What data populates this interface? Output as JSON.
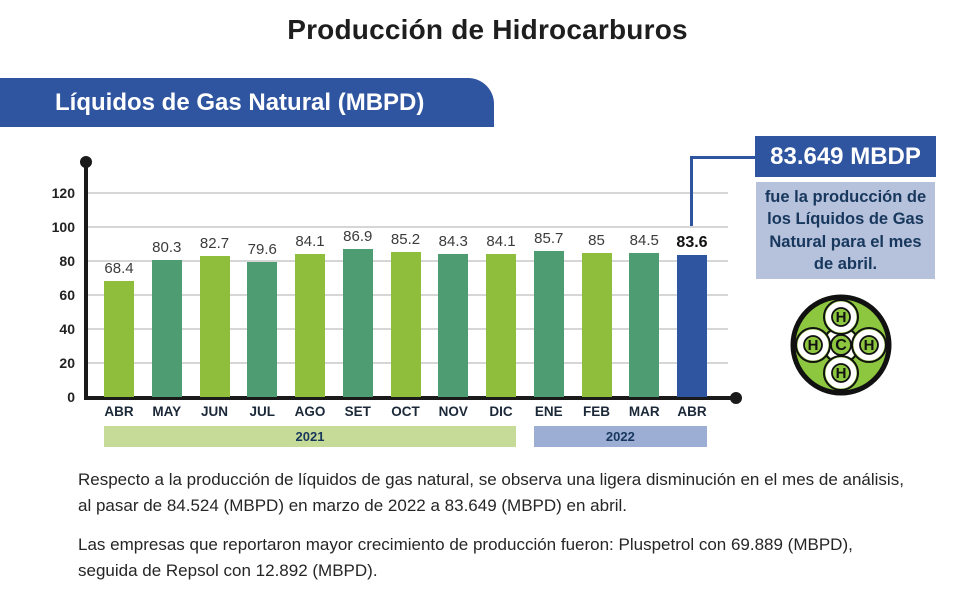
{
  "page": {
    "title": "Producción de Hidrocarburos"
  },
  "banner": {
    "label": "Líquidos de Gas Natural (MBPD)"
  },
  "chart_data": {
    "type": "bar",
    "title": "Líquidos de Gas Natural (MBPD)",
    "categories": [
      "ABR",
      "MAY",
      "JUN",
      "JUL",
      "AGO",
      "SET",
      "OCT",
      "NOV",
      "DIC",
      "ENE",
      "FEB",
      "MAR",
      "ABR"
    ],
    "values": [
      68.4,
      80.3,
      82.7,
      79.6,
      84.1,
      86.9,
      85.2,
      84.3,
      84.1,
      85.7,
      85,
      84.5,
      83.6
    ],
    "value_labels": [
      "68.4",
      "80.3",
      "82.7",
      "79.6",
      "84.1",
      "86.9",
      "85.2",
      "84.3",
      "84.1",
      "85.7",
      "85",
      "84.5",
      "83.6"
    ],
    "emphasis_index": 12,
    "xlabel": "",
    "ylabel": "",
    "y_ticks": [
      0,
      20,
      40,
      60,
      80,
      100,
      120
    ],
    "ylim": [
      0,
      139
    ],
    "grid": true,
    "legend": "none",
    "year_bands": [
      {
        "label": "2021",
        "start_index": 0,
        "end_index": 8
      },
      {
        "label": "2022",
        "start_index": 9,
        "end_index": 12
      }
    ]
  },
  "callout": {
    "headline": "83.649 MBDP",
    "body": "fue la producción de los Líquidos de Gas Natural para el mes de abril."
  },
  "icon": {
    "center_letter": "C",
    "outer_letter": "H"
  },
  "paragraphs": [
    "Respecto a la producción de líquidos de gas natural, se observa una ligera disminución en el mes de análisis, al pasar de 84.524 (MBPD) en marzo de 2022 a 83.649 (MBPD) en abril.",
    "Las empresas que reportaron mayor crecimiento de producción fueron: Pluspetrol con 69.889 (MBPD), seguida de Repsol con 12.892 (MBPD)."
  ],
  "colors": {
    "bar_green_light": "#8ebe3b",
    "bar_green_dark": "#4e9c72",
    "bar_blue": "#2f55a0",
    "gridline": "#d6d6d6",
    "axis": "#1a1a1a",
    "band_2021_bg": "#c6db97",
    "band_2022_bg": "#9daed5",
    "band_text": "#17375d",
    "accent_blue": "#2f55a0",
    "callout_body_bg": "#b6c1dc",
    "molecule_green": "#8dc63f"
  }
}
